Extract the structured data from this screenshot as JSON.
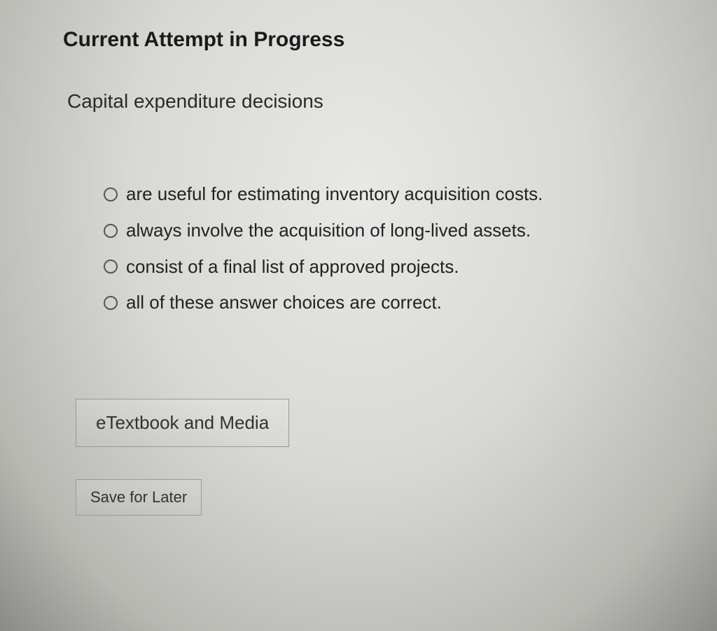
{
  "heading": "Current Attempt in Progress",
  "question": "Capital expenditure decisions",
  "options": [
    "are useful for estimating inventory acquisition costs.",
    "always involve the acquisition of long-lived assets.",
    "consist of a final list of approved projects.",
    "all of these answer choices are correct."
  ],
  "buttons": {
    "etextbook": "eTextbook and Media",
    "save": "Save for Later"
  },
  "style": {
    "heading_fontsize": 30,
    "question_fontsize": 28,
    "option_fontsize": 26,
    "button1_fontsize": 26,
    "button2_fontsize": 22,
    "text_color": "#2a2a2a",
    "heading_color": "#1a1a1a",
    "radio_border_color": "#555555",
    "button_border_color": "#999999",
    "background_gradient": [
      "#e8e8e6",
      "#d8d8d5",
      "#b8b8b3",
      "#8a8a86"
    ]
  }
}
